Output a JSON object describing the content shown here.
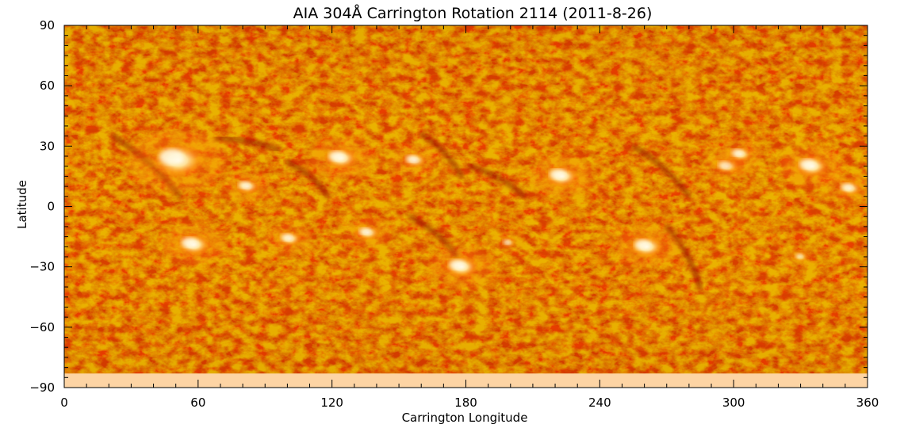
{
  "chart_data": {
    "type": "heatmap",
    "title": "AIA 304Å Carrington Rotation 2114 (2011-8-26)",
    "xlabel": "Carrington Longitude",
    "ylabel": "Latitude",
    "xlim": [
      0,
      360
    ],
    "ylim": [
      -90,
      90
    ],
    "x_ticks": [
      0,
      60,
      120,
      180,
      240,
      300,
      360
    ],
    "y_ticks": [
      -90,
      -60,
      -30,
      0,
      30,
      60,
      90
    ],
    "x_tick_labels": [
      "0",
      "60",
      "120",
      "180",
      "240",
      "300",
      "360"
    ],
    "y_tick_labels": [
      "−90",
      "−60",
      "−30",
      "0",
      "30",
      "60",
      "90"
    ],
    "missing_data_below_latitude": -83,
    "colormap": "sdo-aia-304 (dark red to orange to white)",
    "colors": {
      "dark": "#a81400",
      "mid": "#d84000",
      "bright": "#ff8a10",
      "hot": "#ffd070",
      "white": "#fffbe8",
      "missing": "#fdd4a4",
      "filament": "#8e0c00"
    },
    "bright_regions": [
      {
        "lon": 51,
        "lat": 23,
        "intensity": "very high"
      },
      {
        "lon": 82,
        "lat": 10,
        "intensity": "medium"
      },
      {
        "lon": 124,
        "lat": 24,
        "intensity": "high"
      },
      {
        "lon": 157,
        "lat": 23,
        "intensity": "medium"
      },
      {
        "lon": 223,
        "lat": 15,
        "intensity": "high"
      },
      {
        "lon": 297,
        "lat": 20,
        "intensity": "medium"
      },
      {
        "lon": 303,
        "lat": 26,
        "intensity": "medium"
      },
      {
        "lon": 335,
        "lat": 20,
        "intensity": "high"
      },
      {
        "lon": 352,
        "lat": 9,
        "intensity": "medium"
      },
      {
        "lon": 58,
        "lat": -19,
        "intensity": "high"
      },
      {
        "lon": 101,
        "lat": -16,
        "intensity": "medium"
      },
      {
        "lon": 136,
        "lat": -13,
        "intensity": "medium"
      },
      {
        "lon": 178,
        "lat": -30,
        "intensity": "high"
      },
      {
        "lon": 199,
        "lat": -18,
        "intensity": "low"
      },
      {
        "lon": 261,
        "lat": -20,
        "intensity": "high"
      },
      {
        "lon": 330,
        "lat": -25,
        "intensity": "low"
      }
    ],
    "filaments": [
      {
        "lon": [
          22,
          52
        ],
        "lat": [
          35,
          5
        ]
      },
      {
        "lon": [
          68,
          96
        ],
        "lat": [
          34,
          28
        ]
      },
      {
        "lon": [
          100,
          118
        ],
        "lat": [
          22,
          5
        ]
      },
      {
        "lon": [
          160,
          178
        ],
        "lat": [
          36,
          15
        ]
      },
      {
        "lon": [
          182,
          206
        ],
        "lat": [
          20,
          5
        ]
      },
      {
        "lon": [
          255,
          280
        ],
        "lat": [
          30,
          5
        ]
      },
      {
        "lon": [
          270,
          285
        ],
        "lat": [
          -10,
          -40
        ]
      },
      {
        "lon": [
          155,
          176
        ],
        "lat": [
          -5,
          -25
        ]
      }
    ]
  }
}
